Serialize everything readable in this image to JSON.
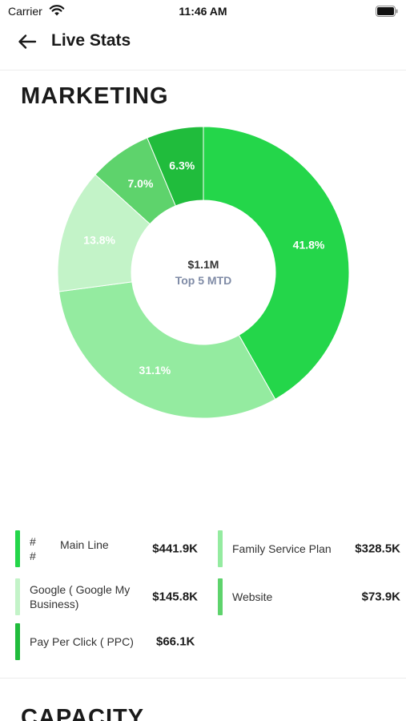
{
  "status_bar": {
    "carrier": "Carrier",
    "time": "11:46 AM"
  },
  "nav": {
    "title": "Live Stats"
  },
  "section": {
    "title": "MARKETING"
  },
  "chart_data": {
    "type": "pie",
    "donut": true,
    "center_value": "$1.1M",
    "center_label": "Top 5 MTD",
    "slices": [
      {
        "label": "Main Line",
        "percent": 41.8,
        "percent_label": "41.8%",
        "value": "$441.9K",
        "color": "#24d64a"
      },
      {
        "label": "Family Service Plan",
        "percent": 31.1,
        "percent_label": "31.1%",
        "value": "$328.5K",
        "color": "#94eba0"
      },
      {
        "label": "Google ( Google My Business)",
        "percent": 13.8,
        "percent_label": "13.8%",
        "value": "$145.8K",
        "color": "#c3f3c8"
      },
      {
        "label": "Website",
        "percent": 7.0,
        "percent_label": "7.0%",
        "value": "$73.9K",
        "color": "#5ed36c"
      },
      {
        "label": "Pay Per Click ( PPC)",
        "percent": 6.3,
        "percent_label": "6.3%",
        "value": "$66.1K",
        "color": "#20bc3c"
      }
    ]
  },
  "legend": {
    "items": [
      {
        "prefix_top": "#",
        "prefix_bottom": "#",
        "label": "Main Line",
        "value": "$441.9K",
        "color": "#24d64a"
      },
      {
        "label": "Family Service Plan",
        "value": "$328.5K",
        "color": "#94eba0"
      },
      {
        "label_line1": "Google ( Google My",
        "label_line2": "Business)",
        "value": "$145.8K",
        "color": "#c3f3c8"
      },
      {
        "label": "Website",
        "value": "$73.9K",
        "color": "#5ed36c"
      },
      {
        "label": "Pay Per Click ( PPC)",
        "value": "$66.1K",
        "color": "#20bc3c"
      }
    ]
  },
  "next_section": {
    "title": "CAPACITY"
  }
}
